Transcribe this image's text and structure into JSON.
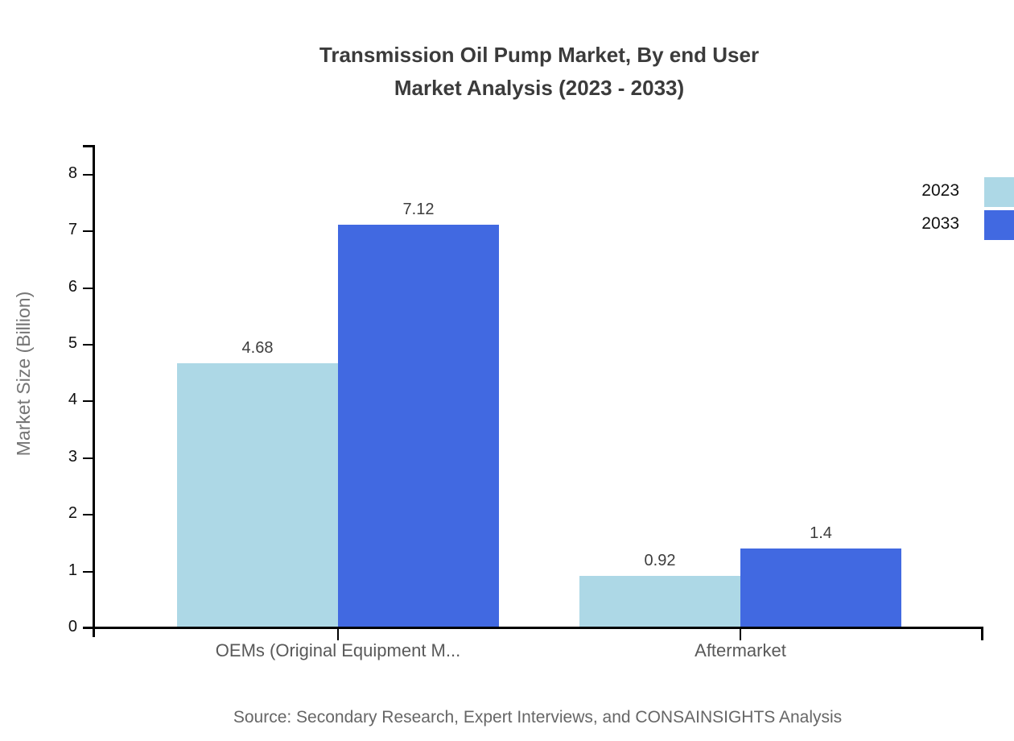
{
  "title_line1": "Transmission Oil Pump Market, By end User",
  "title_line2": "Market Analysis (2023 - 2033)",
  "source": "Source: Secondary Research, Expert Interviews, and CONSAINSIGHTS Analysis",
  "chart_data": {
    "type": "bar",
    "title": "Transmission Oil Pump Market, By end User Market Analysis (2023 - 2033)",
    "categories": [
      "OEMs (Original Equipment M...",
      "Aftermarket"
    ],
    "series": [
      {
        "name": "2023",
        "color": "#ADD8E6",
        "values": [
          4.68,
          0.92
        ]
      },
      {
        "name": "2033",
        "color": "#4169E1",
        "values": [
          7.12,
          1.4
        ]
      }
    ],
    "xlabel": "",
    "ylabel": "Market Size (Billion)",
    "ylim": [
      0,
      8
    ],
    "yticks": [
      0,
      1,
      2,
      3,
      4,
      5,
      6,
      7,
      8
    ],
    "grid": false,
    "legend_position": "top-right",
    "value_labels": true,
    "axis_color": "#000000",
    "title_color": "#3b3b3b",
    "tick_label_color": "#111111",
    "category_label_color": "#595959",
    "value_label_color": "#3d3d3d",
    "source_color": "#666666"
  }
}
